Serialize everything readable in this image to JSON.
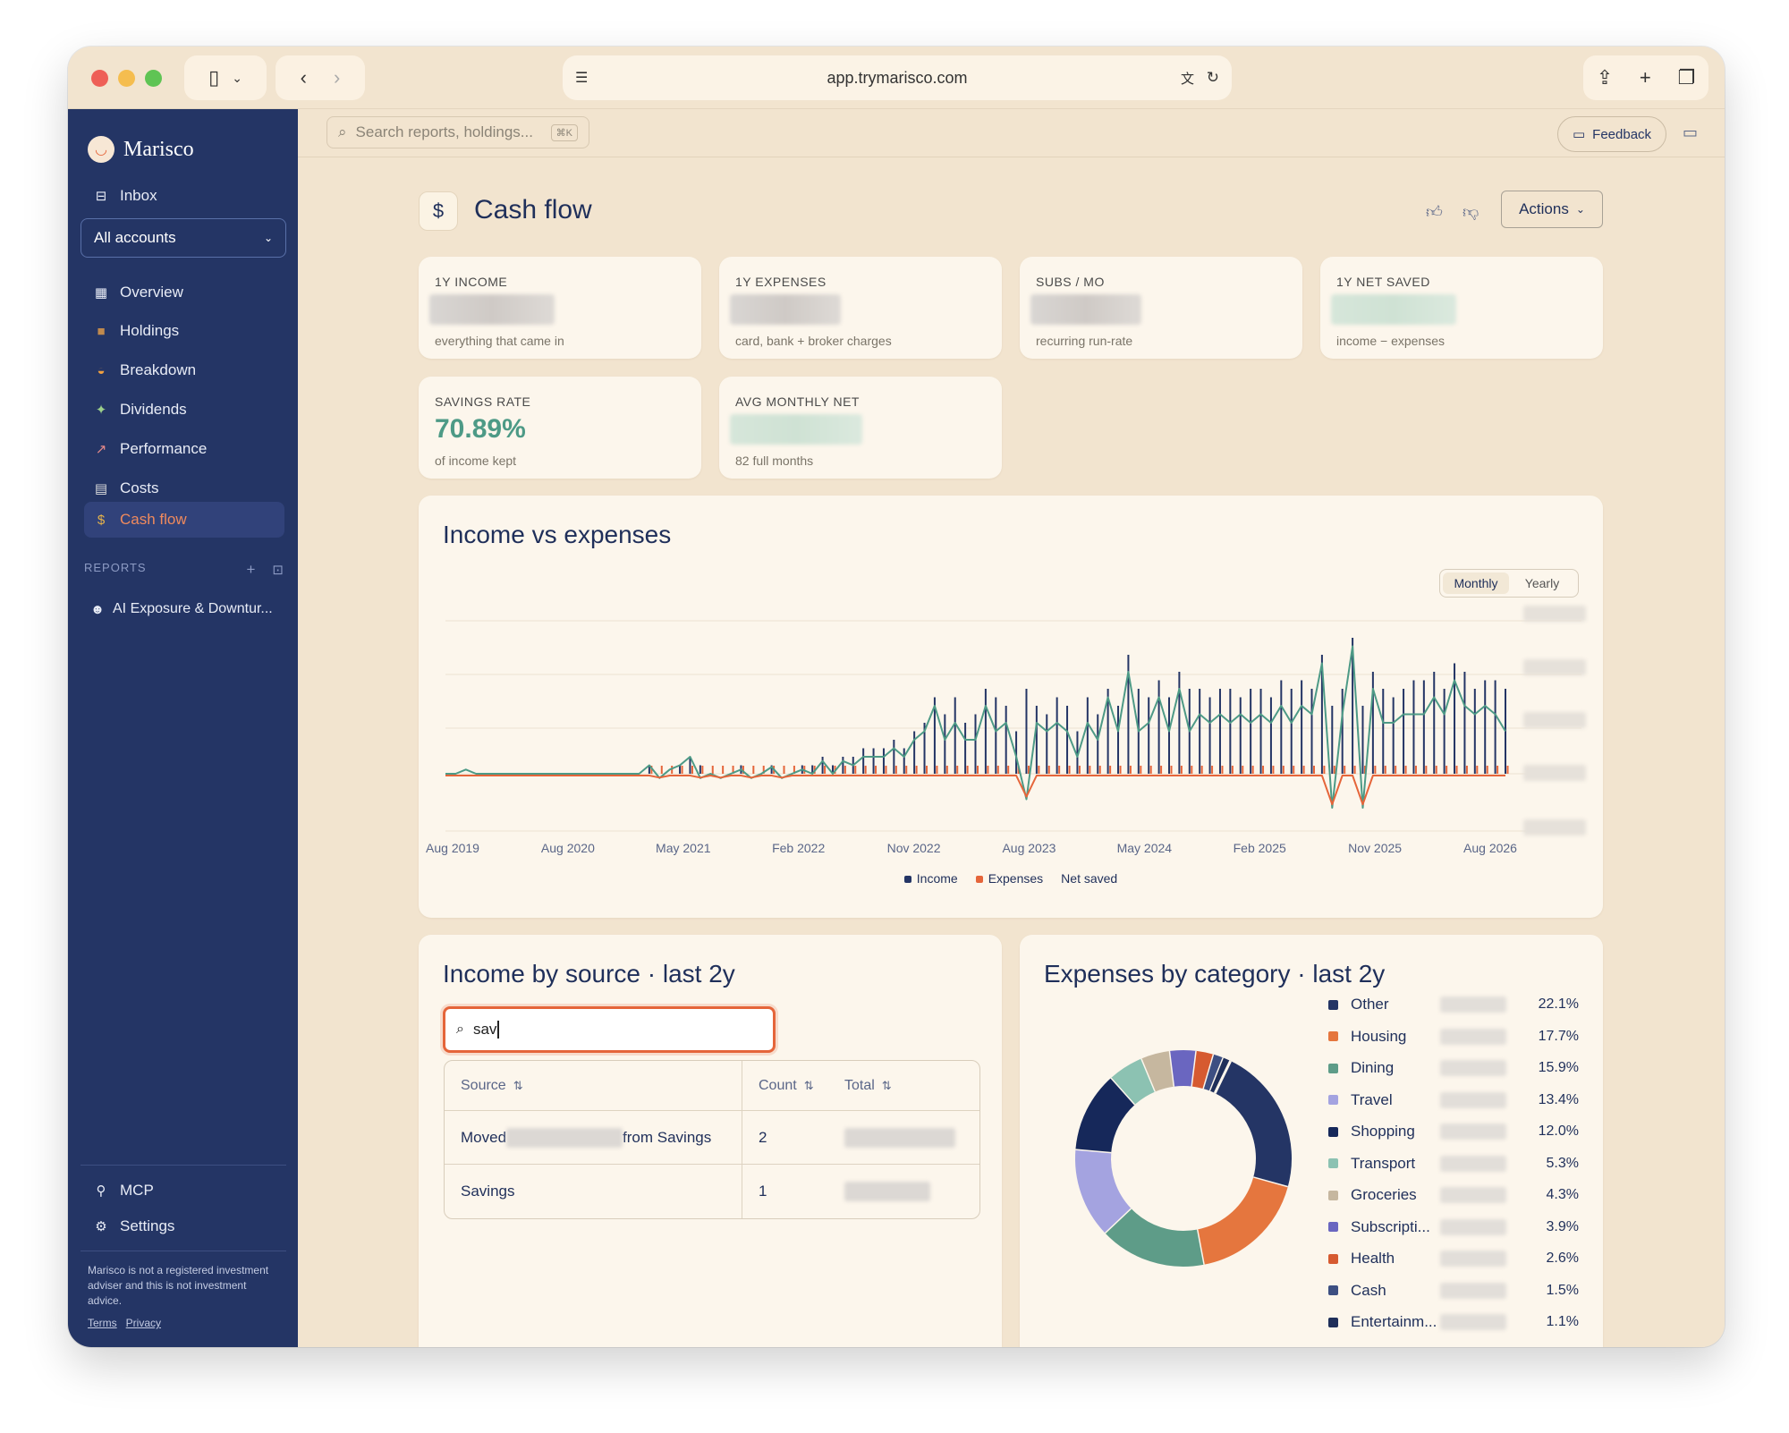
{
  "browser": {
    "url": "app.trymarisco.com"
  },
  "sidebar": {
    "brand": "Marisco",
    "inbox": "Inbox",
    "account_select": "All accounts",
    "items": [
      {
        "label": "Overview",
        "icon": "grid-icon"
      },
      {
        "label": "Holdings",
        "icon": "box-icon"
      },
      {
        "label": "Breakdown",
        "icon": "pie-icon"
      },
      {
        "label": "Dividends",
        "icon": "money-icon"
      },
      {
        "label": "Performance",
        "icon": "chart-icon"
      },
      {
        "label": "Costs",
        "icon": "receipt-icon"
      },
      {
        "label": "Cash flow",
        "icon": "moneybag-icon"
      }
    ],
    "reports_heading": "REPORTS",
    "report_item": "AI Exposure & Downtur...",
    "mcp": "MCP",
    "settings": "Settings",
    "disclaimer": "Marisco is not a registered investment adviser and this is not investment advice.",
    "terms": "Terms",
    "privacy": "Privacy"
  },
  "topbar": {
    "search_placeholder": "Search reports, holdings...",
    "search_shortcut": "⌘K",
    "feedback": "Feedback"
  },
  "page": {
    "title": "Cash flow",
    "actions": "Actions"
  },
  "stats": [
    {
      "label": "1Y INCOME",
      "sub": "everything that came in"
    },
    {
      "label": "1Y EXPENSES",
      "sub": "card, bank + broker charges"
    },
    {
      "label": "SUBS / MO",
      "sub": "recurring run-rate"
    },
    {
      "label": "1Y NET SAVED",
      "sub": "income − expenses"
    },
    {
      "label": "SAVINGS RATE",
      "value": "70.89%",
      "sub": "of income kept"
    },
    {
      "label": "AVG MONTHLY NET",
      "sub": "82 full months"
    }
  ],
  "income_chart": {
    "title": "Income vs expenses",
    "toggle": [
      "Monthly",
      "Yearly"
    ],
    "legend": [
      "Income",
      "Expenses",
      "Net saved"
    ]
  },
  "chart_data": [
    {
      "type": "bar",
      "title": "Income vs expenses",
      "x_ticks": [
        "Aug 2019",
        "Aug 2020",
        "May 2021",
        "Feb 2022",
        "Nov 2022",
        "Aug 2023",
        "May 2024",
        "Feb 2025",
        "Nov 2025",
        "Aug 2026"
      ],
      "y_ticks_hidden": true,
      "series": [
        {
          "name": "Income",
          "color": "#243565",
          "style": "bars",
          "relative_values": [
            0,
            0,
            0,
            0,
            0,
            0,
            0,
            0,
            0,
            0,
            0,
            0,
            0,
            0,
            0,
            0,
            0,
            0,
            0,
            0,
            1,
            0,
            0,
            1,
            2,
            1,
            0,
            0,
            0,
            1,
            0,
            0,
            1,
            0,
            0,
            1,
            1,
            2,
            1,
            2,
            2,
            3,
            3,
            3,
            4,
            3,
            5,
            6,
            9,
            7,
            9,
            6,
            7,
            10,
            9,
            8,
            5,
            10,
            8,
            7,
            9,
            8,
            5,
            9,
            7,
            10,
            8,
            14,
            10,
            9,
            11,
            9,
            12,
            10,
            10,
            9,
            10,
            10,
            9,
            10,
            10,
            9,
            11,
            10,
            11,
            10,
            14,
            8,
            10,
            16,
            8,
            12,
            10,
            9,
            10,
            11,
            11,
            12,
            10,
            13,
            12,
            10,
            11,
            11,
            10
          ]
        },
        {
          "name": "Expenses",
          "color": "#e5653a",
          "style": "bars",
          "relative_values": [
            0,
            0,
            0,
            0,
            0,
            0,
            0,
            0,
            0,
            0,
            0,
            0,
            0,
            0,
            0,
            0,
            0,
            0,
            0,
            0,
            1,
            1,
            1,
            1,
            1,
            1,
            1,
            1,
            1,
            1,
            1,
            1,
            1,
            1,
            1,
            1,
            1,
            1,
            1,
            1,
            1,
            1,
            1,
            1,
            1,
            1,
            1,
            1,
            1,
            1,
            1,
            1,
            1,
            1,
            1,
            1,
            1,
            1,
            1,
            1,
            1,
            1,
            1,
            1,
            1,
            1,
            1,
            1,
            1,
            1,
            1,
            1,
            1,
            1,
            1,
            1,
            1,
            1,
            1,
            1,
            1,
            1,
            1,
            1,
            1,
            1,
            1,
            1,
            1,
            1,
            1,
            1,
            1,
            1,
            1,
            1,
            1,
            1,
            1,
            1,
            1,
            1,
            1,
            1,
            1
          ]
        },
        {
          "name": "Net saved",
          "color": "#4d9a86",
          "style": "line",
          "relative_values": [
            0,
            0,
            0.5,
            0,
            0,
            0,
            0,
            0,
            0,
            0,
            0,
            0,
            0,
            0,
            0,
            0,
            0,
            0,
            0,
            0,
            1,
            -0.5,
            0.5,
            1,
            2,
            -0.5,
            0,
            -0.5,
            0,
            0.5,
            -0.5,
            0,
            0.8,
            -0.5,
            0,
            0.5,
            0,
            1.5,
            0,
            1.5,
            1,
            2,
            2,
            2,
            3,
            2,
            4,
            5,
            8,
            4,
            6,
            4,
            4,
            8,
            5,
            6,
            2,
            -3,
            6,
            5,
            6,
            5,
            2,
            6,
            4,
            9,
            5,
            12,
            5,
            6,
            9,
            5,
            10,
            5,
            7,
            6,
            7,
            6,
            7,
            6,
            7,
            6,
            8,
            6,
            8,
            7,
            13,
            -4,
            7,
            15,
            -4,
            10,
            6,
            6,
            7,
            7,
            7,
            9,
            7,
            11,
            8,
            7,
            8,
            7,
            5
          ]
        }
      ]
    },
    {
      "type": "pie",
      "title": "Expenses by category · last 2y",
      "labels": [
        "Other",
        "Housing",
        "Dining",
        "Travel",
        "Shopping",
        "Transport",
        "Groceries",
        "Subscripti...",
        "Health",
        "Cash",
        "Entertainm..."
      ],
      "values": [
        22.1,
        17.7,
        15.9,
        13.4,
        12.0,
        5.3,
        4.3,
        3.9,
        2.6,
        1.5,
        1.1
      ],
      "display": [
        "22.1%",
        "17.7%",
        "15.9%",
        "13.4%",
        "12.0%",
        "5.3%",
        "4.3%",
        "3.9%",
        "2.6%",
        "1.5%",
        "1.1%"
      ],
      "colors": [
        "#243565",
        "#e5763e",
        "#5e9c88",
        "#a4a3e0",
        "#16285a",
        "#8cc2b2",
        "#c6b79f",
        "#6a66c0",
        "#d65a30",
        "#3d4f82",
        "#1f2f5a"
      ]
    }
  ],
  "income_source": {
    "title": "Income by source · last 2y",
    "search_value": "sav",
    "columns": [
      "Source",
      "Count",
      "Total"
    ],
    "rows": [
      {
        "source_prefix": "Moved",
        "source_suffix": "from Savings",
        "count": "2"
      },
      {
        "source_prefix": "Savings",
        "source_suffix": "",
        "count": "1"
      }
    ]
  },
  "expenses_category": {
    "title": "Expenses by category · last 2y"
  }
}
